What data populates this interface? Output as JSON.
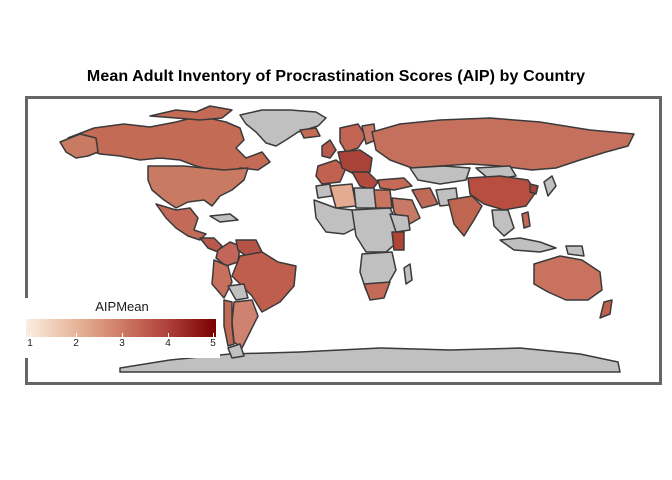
{
  "title": "Mean Adult Inventory of Procrastination Scores (AIP) by Country",
  "legend": {
    "title": "AIPMean",
    "min": 1,
    "max": 5,
    "ticks": [
      "1",
      "2",
      "3",
      "4",
      "5"
    ],
    "gradient": [
      "#fbeee0",
      "#e8b89e",
      "#cf7c66",
      "#ad3f3a",
      "#7a0000"
    ]
  },
  "colors": {
    "no_data": "#c0c0c0",
    "border": "#3a3a3a",
    "frame": "#666666"
  }
}
